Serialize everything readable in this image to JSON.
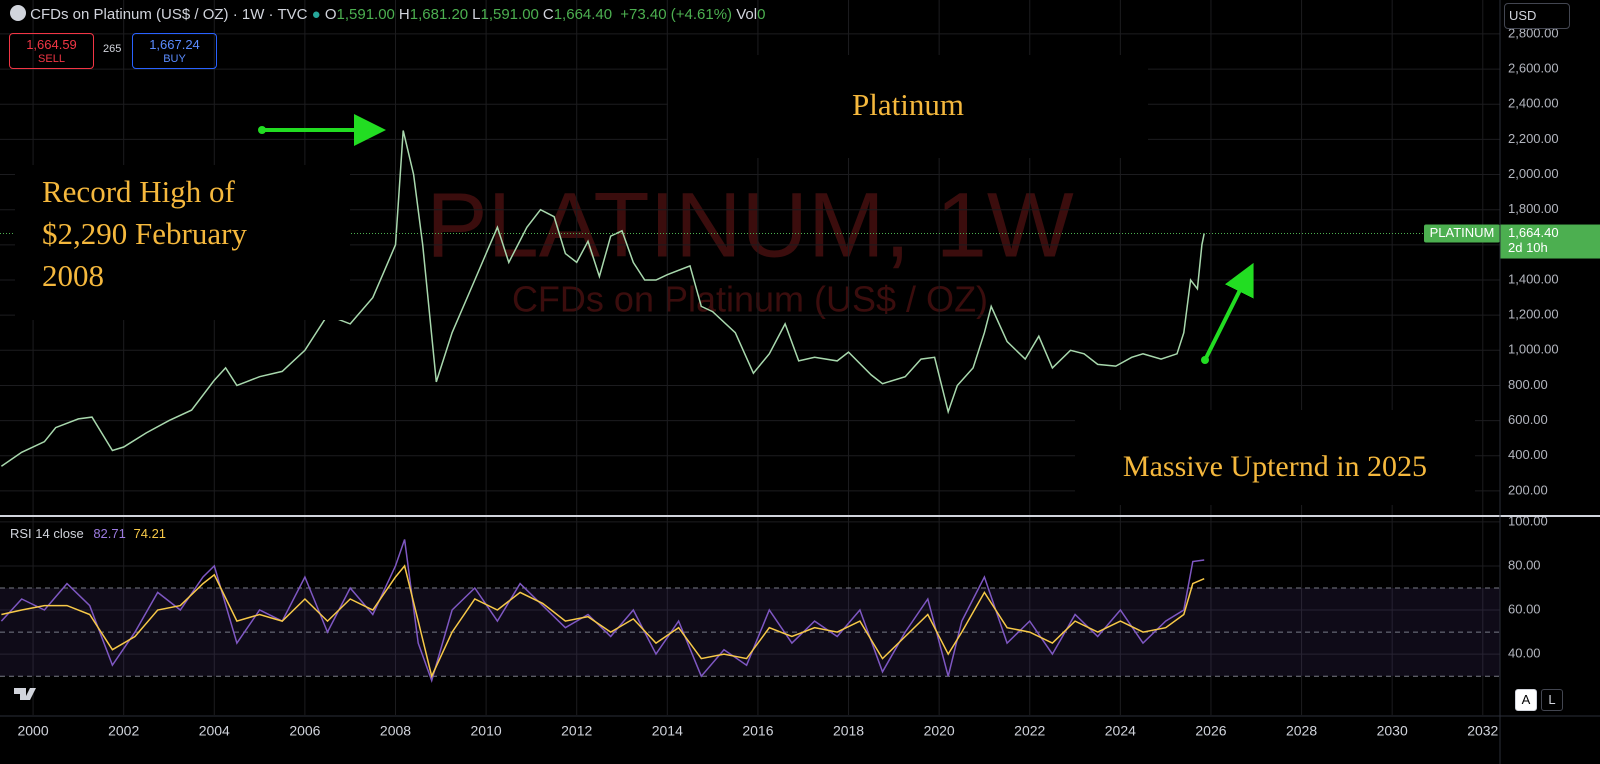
{
  "header": {
    "symbol": "CFDs on Platinum (US$ / OZ) · 1W · TVC",
    "ohlc": [
      {
        "key": "O",
        "value": "1,591.00"
      },
      {
        "key": "H",
        "value": "1,681.20"
      },
      {
        "key": "L",
        "value": "1,591.00"
      },
      {
        "key": "C",
        "value": "1,664.40"
      }
    ],
    "change": "+73.40 (+4.61%)",
    "volume_key": "Vol",
    "volume": "0",
    "sell_price": "1,664.59",
    "sell": "SELL",
    "spread": "265",
    "buy_price": "1,667.24",
    "buy": "BUY",
    "currency": "USD",
    "auto": "A",
    "log": "L"
  },
  "chart_data": [
    {
      "type": "line",
      "title": "Platinum",
      "watermark": "PLATINUM, 1W",
      "watermark_subtitle": "CFDs on Platinum (US$ / OZ)",
      "annotations": [
        "Record High of $2,290 February 2008",
        "Massive Upternd in 2025"
      ],
      "x": [
        1999.3,
        1999.75,
        2000.25,
        2000.5,
        2001.0,
        2001.3,
        2001.75,
        2002.0,
        2002.5,
        2003.0,
        2003.5,
        2004.0,
        2004.25,
        2004.5,
        2005.0,
        2005.5,
        2006.0,
        2006.5,
        2007.0,
        2007.5,
        2007.75,
        2008.0,
        2008.17,
        2008.4,
        2008.6,
        2008.9,
        2009.25,
        2009.75,
        2010.0,
        2010.25,
        2010.5,
        2010.9,
        2011.2,
        2011.5,
        2011.75,
        2012.0,
        2012.25,
        2012.5,
        2012.75,
        2013.0,
        2013.25,
        2013.5,
        2013.75,
        2014.0,
        2014.5,
        2014.75,
        2015.0,
        2015.5,
        2015.9,
        2016.25,
        2016.6,
        2016.9,
        2017.25,
        2017.75,
        2018.0,
        2018.5,
        2018.75,
        2019.25,
        2019.6,
        2019.9,
        2020.2,
        2020.4,
        2020.75,
        2021.0,
        2021.15,
        2021.5,
        2021.9,
        2022.2,
        2022.5,
        2022.9,
        2023.2,
        2023.5,
        2023.9,
        2024.25,
        2024.5,
        2024.9,
        2025.25,
        2025.4,
        2025.55,
        2025.7,
        2025.8,
        2025.85
      ],
      "values": [
        340,
        420,
        480,
        560,
        610,
        620,
        430,
        450,
        530,
        600,
        660,
        830,
        900,
        800,
        850,
        880,
        1000,
        1200,
        1150,
        1300,
        1450,
        1600,
        2250,
        2000,
        1600,
        820,
        1100,
        1400,
        1550,
        1700,
        1500,
        1700,
        1800,
        1760,
        1550,
        1500,
        1620,
        1420,
        1650,
        1680,
        1500,
        1400,
        1400,
        1430,
        1480,
        1250,
        1220,
        1100,
        870,
        980,
        1150,
        940,
        960,
        940,
        990,
        860,
        810,
        850,
        950,
        960,
        650,
        800,
        900,
        1100,
        1250,
        1050,
        950,
        1080,
        900,
        1000,
        980,
        920,
        910,
        960,
        980,
        950,
        980,
        1100,
        1400,
        1350,
        1600,
        1664.4
      ],
      "color": "#a8d8ad",
      "xlim": [
        1999.27,
        2032.38
      ],
      "xticks": [
        2000,
        2002,
        2004,
        2006,
        2008,
        2010,
        2012,
        2014,
        2016,
        2018,
        2020,
        2022,
        2024,
        2026,
        2028,
        2030,
        2032
      ],
      "ylim": [
        63,
        2993
      ],
      "yticks": [
        {
          "value": 200,
          "label": "200.00"
        },
        {
          "value": 400,
          "label": "400.00"
        },
        {
          "value": 600,
          "label": "600.00"
        },
        {
          "value": 800,
          "label": "800.00"
        },
        {
          "value": 1000,
          "label": "1,000.00"
        },
        {
          "value": 1200,
          "label": "1,200.00"
        },
        {
          "value": 1400,
          "label": "1,400.00"
        },
        {
          "value": 1600,
          "label": "1,600.00"
        },
        {
          "value": 1800,
          "label": "1,800.00"
        },
        {
          "value": 2000,
          "label": "2,000.00"
        },
        {
          "value": 2200,
          "label": "2,200.00"
        },
        {
          "value": 2400,
          "label": "2,400.00"
        },
        {
          "value": 2600,
          "label": "2,600.00"
        },
        {
          "value": 2800,
          "label": "2,800.00"
        }
      ],
      "grid": true,
      "last_price": {
        "value": 1664.4,
        "label": "1,664.40"
      },
      "last_price_name": "PLATINUM",
      "countdown": "2d 10h"
    },
    {
      "type": "line",
      "title": "RSI 14 close",
      "x": [
        1999.3,
        1999.75,
        2000.25,
        2000.75,
        2001.25,
        2001.75,
        2002.25,
        2002.75,
        2003.25,
        2003.75,
        2004.0,
        2004.5,
        2005.0,
        2005.5,
        2006.0,
        2006.5,
        2007.0,
        2007.5,
        2008.0,
        2008.2,
        2008.5,
        2008.8,
        2009.25,
        2009.75,
        2010.25,
        2010.75,
        2011.25,
        2011.75,
        2012.25,
        2012.75,
        2013.25,
        2013.75,
        2014.25,
        2014.75,
        2015.25,
        2015.75,
        2016.25,
        2016.75,
        2017.25,
        2017.75,
        2018.25,
        2018.75,
        2019.25,
        2019.75,
        2020.2,
        2020.5,
        2021.0,
        2021.5,
        2022.0,
        2022.5,
        2023.0,
        2023.5,
        2024.0,
        2024.5,
        2025.0,
        2025.4,
        2025.6,
        2025.85
      ],
      "series": [
        {
          "color": "#7e57c2",
          "values": [
            55,
            65,
            60,
            72,
            62,
            35,
            50,
            68,
            60,
            75,
            80,
            45,
            60,
            55,
            75,
            50,
            70,
            58,
            80,
            92,
            45,
            28,
            60,
            70,
            55,
            72,
            62,
            52,
            58,
            48,
            60,
            40,
            55,
            30,
            42,
            35,
            60,
            45,
            55,
            48,
            60,
            32,
            50,
            65,
            30,
            55,
            75,
            45,
            55,
            40,
            58,
            48,
            60,
            45,
            55,
            60,
            82,
            82.71
          ]
        },
        {
          "color": "#f7c948",
          "values": [
            58,
            60,
            62,
            62,
            58,
            42,
            48,
            60,
            62,
            72,
            76,
            55,
            58,
            55,
            65,
            55,
            65,
            60,
            75,
            80,
            55,
            30,
            50,
            65,
            60,
            68,
            63,
            55,
            57,
            50,
            56,
            45,
            52,
            38,
            40,
            38,
            52,
            48,
            52,
            50,
            55,
            38,
            48,
            58,
            40,
            50,
            68,
            52,
            50,
            45,
            55,
            50,
            55,
            50,
            52,
            58,
            72,
            74.21
          ]
        }
      ],
      "xlim": [
        1999.27,
        2032.38
      ],
      "xticks": [
        2000,
        2002,
        2004,
        2006,
        2008,
        2010,
        2012,
        2014,
        2016,
        2018,
        2020,
        2022,
        2024,
        2026,
        2028,
        2030,
        2032
      ],
      "ylim": [
        12.4,
        102.2
      ],
      "yticks": [
        {
          "value": 40,
          "label": "40.00"
        },
        {
          "value": 60,
          "label": "60.00"
        },
        {
          "value": 80,
          "label": "80.00"
        },
        {
          "value": 100,
          "label": "100.00"
        }
      ],
      "bands": [
        30,
        50,
        70
      ],
      "grid": true
    }
  ]
}
